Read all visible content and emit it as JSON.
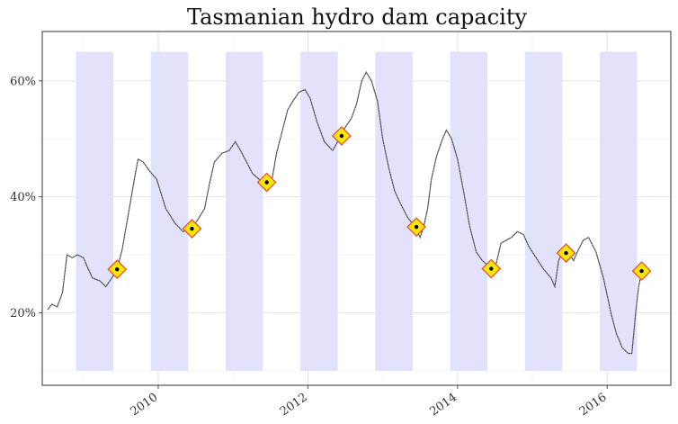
{
  "chart_data": {
    "type": "line",
    "title": "Tasmanian hydro dam capacity",
    "xlabel": "",
    "ylabel": "",
    "xlim": [
      2008.45,
      2016.85
    ],
    "ylim": [
      0.075,
      0.685
    ],
    "x_ticks": [
      2010,
      2012,
      2014,
      2016
    ],
    "x_tick_labels": [
      "2010",
      "2012",
      "2014",
      "2016"
    ],
    "y_ticks": [
      0.2,
      0.4,
      0.6
    ],
    "y_tick_labels": [
      "20%",
      "40%",
      "60%"
    ],
    "grid": true,
    "legend": "none",
    "shaded_periods": {
      "y_range": [
        0.1,
        0.65
      ],
      "spans": [
        [
          2008.9,
          2009.4
        ],
        [
          2009.9,
          2010.4
        ],
        [
          2010.9,
          2011.4
        ],
        [
          2011.9,
          2012.4
        ],
        [
          2012.9,
          2013.4
        ],
        [
          2013.9,
          2014.4
        ],
        [
          2014.9,
          2015.4
        ],
        [
          2015.9,
          2016.4
        ]
      ]
    },
    "series": [
      {
        "points": [
          [
            2008.52,
            0.205
          ],
          [
            2008.58,
            0.215
          ],
          [
            2008.65,
            0.21
          ],
          [
            2008.72,
            0.235
          ],
          [
            2008.78,
            0.3
          ],
          [
            2008.85,
            0.295
          ],
          [
            2008.92,
            0.3
          ],
          [
            2009.0,
            0.295
          ],
          [
            2009.05,
            0.28
          ],
          [
            2009.12,
            0.26
          ],
          [
            2009.22,
            0.255
          ],
          [
            2009.3,
            0.245
          ],
          [
            2009.38,
            0.26
          ],
          [
            2009.45,
            0.275
          ],
          [
            2009.52,
            0.31
          ],
          [
            2009.6,
            0.37
          ],
          [
            2009.68,
            0.43
          ],
          [
            2009.73,
            0.465
          ],
          [
            2009.8,
            0.46
          ],
          [
            2009.88,
            0.445
          ],
          [
            2009.98,
            0.43
          ],
          [
            2010.1,
            0.38
          ],
          [
            2010.22,
            0.355
          ],
          [
            2010.33,
            0.34
          ],
          [
            2010.45,
            0.345
          ],
          [
            2010.55,
            0.365
          ],
          [
            2010.62,
            0.38
          ],
          [
            2010.68,
            0.42
          ],
          [
            2010.75,
            0.46
          ],
          [
            2010.85,
            0.475
          ],
          [
            2010.95,
            0.48
          ],
          [
            2011.03,
            0.495
          ],
          [
            2011.1,
            0.48
          ],
          [
            2011.18,
            0.46
          ],
          [
            2011.26,
            0.44
          ],
          [
            2011.35,
            0.43
          ],
          [
            2011.45,
            0.42
          ],
          [
            2011.52,
            0.43
          ],
          [
            2011.58,
            0.475
          ],
          [
            2011.65,
            0.51
          ],
          [
            2011.73,
            0.55
          ],
          [
            2011.8,
            0.565
          ],
          [
            2011.88,
            0.58
          ],
          [
            2011.96,
            0.585
          ],
          [
            2012.03,
            0.57
          ],
          [
            2012.12,
            0.53
          ],
          [
            2012.22,
            0.495
          ],
          [
            2012.33,
            0.48
          ],
          [
            2012.42,
            0.5
          ],
          [
            2012.5,
            0.52
          ],
          [
            2012.58,
            0.535
          ],
          [
            2012.65,
            0.56
          ],
          [
            2012.72,
            0.6
          ],
          [
            2012.78,
            0.615
          ],
          [
            2012.85,
            0.6
          ],
          [
            2012.93,
            0.565
          ],
          [
            2013.0,
            0.5
          ],
          [
            2013.08,
            0.45
          ],
          [
            2013.16,
            0.41
          ],
          [
            2013.25,
            0.385
          ],
          [
            2013.33,
            0.365
          ],
          [
            2013.42,
            0.35
          ],
          [
            2013.5,
            0.33
          ],
          [
            2013.55,
            0.35
          ],
          [
            2013.6,
            0.38
          ],
          [
            2013.65,
            0.43
          ],
          [
            2013.72,
            0.47
          ],
          [
            2013.8,
            0.5
          ],
          [
            2013.85,
            0.515
          ],
          [
            2013.92,
            0.5
          ],
          [
            2014.0,
            0.465
          ],
          [
            2014.08,
            0.41
          ],
          [
            2014.16,
            0.35
          ],
          [
            2014.25,
            0.305
          ],
          [
            2014.33,
            0.29
          ],
          [
            2014.42,
            0.28
          ],
          [
            2014.5,
            0.275
          ],
          [
            2014.58,
            0.32
          ],
          [
            2014.65,
            0.325
          ],
          [
            2014.72,
            0.33
          ],
          [
            2014.8,
            0.34
          ],
          [
            2014.88,
            0.335
          ],
          [
            2014.95,
            0.315
          ],
          [
            2015.05,
            0.295
          ],
          [
            2015.15,
            0.275
          ],
          [
            2015.25,
            0.26
          ],
          [
            2015.3,
            0.245
          ],
          [
            2015.35,
            0.29
          ],
          [
            2015.42,
            0.31
          ],
          [
            2015.5,
            0.3
          ],
          [
            2015.55,
            0.29
          ],
          [
            2015.62,
            0.31
          ],
          [
            2015.68,
            0.325
          ],
          [
            2015.75,
            0.33
          ],
          [
            2015.85,
            0.305
          ],
          [
            2015.95,
            0.26
          ],
          [
            2016.05,
            0.2
          ],
          [
            2016.12,
            0.165
          ],
          [
            2016.2,
            0.14
          ],
          [
            2016.28,
            0.13
          ],
          [
            2016.33,
            0.13
          ],
          [
            2016.38,
            0.2
          ],
          [
            2016.42,
            0.245
          ],
          [
            2016.46,
            0.27
          ]
        ]
      }
    ],
    "markers": {
      "shape": "diamond",
      "fill": "#ffe600",
      "border": "#e8452c",
      "center_dot": "#000000",
      "points": [
        [
          2009.45,
          0.275
        ],
        [
          2010.45,
          0.345
        ],
        [
          2011.45,
          0.425
        ],
        [
          2012.45,
          0.505
        ],
        [
          2013.45,
          0.348
        ],
        [
          2014.45,
          0.276
        ],
        [
          2015.45,
          0.303
        ],
        [
          2016.46,
          0.272
        ]
      ]
    },
    "colors": {
      "shade": "#e2e2fd",
      "panel_border": "#333333",
      "line": "#3a3a3a"
    }
  }
}
